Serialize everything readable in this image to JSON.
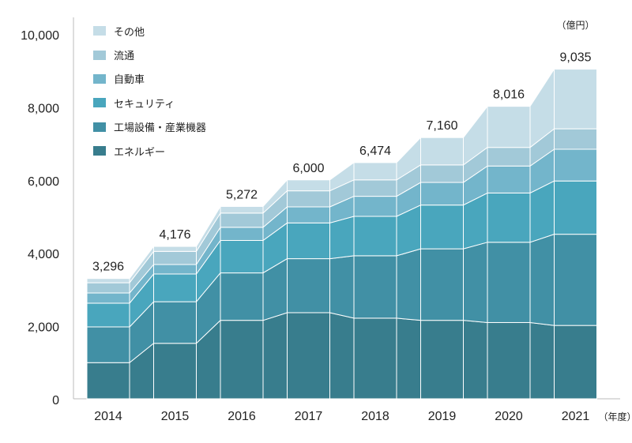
{
  "chart_data": {
    "type": "bar",
    "stacked": true,
    "categories": [
      "2014",
      "2015",
      "2016",
      "2017",
      "2018",
      "2019",
      "2020",
      "2021"
    ],
    "totals": [
      3296,
      4176,
      5272,
      6000,
      6474,
      7160,
      8016,
      9035
    ],
    "series": [
      {
        "name": "エネルギー",
        "color": "#387d8d",
        "values": [
          990,
          1520,
          2150,
          2360,
          2210,
          2150,
          2090,
          2010
        ]
      },
      {
        "name": "工場設備・産業機器",
        "color": "#4190a5",
        "values": [
          980,
          1140,
          1300,
          1480,
          1710,
          1960,
          2200,
          2500
        ]
      },
      {
        "name": "セキュリティ",
        "color": "#49a6bd",
        "values": [
          650,
          760,
          890,
          980,
          1080,
          1200,
          1350,
          1460
        ]
      },
      {
        "name": "自動車",
        "color": "#73b5cb",
        "values": [
          280,
          260,
          360,
          440,
          550,
          620,
          740,
          870
        ]
      },
      {
        "name": "流通",
        "color": "#a2c9d8",
        "values": [
          280,
          360,
          390,
          440,
          450,
          480,
          510,
          560
        ]
      },
      {
        "name": "その他",
        "color": "#c5dde7",
        "values": [
          116,
          136,
          182,
          300,
          474,
          750,
          1126,
          1635
        ]
      }
    ],
    "y_ticks": [
      "0",
      "2,000",
      "4,000",
      "6,000",
      "8,000",
      "10,000"
    ],
    "ylim": [
      0,
      10000
    ],
    "unit_label": "（億円）",
    "x_unit_label": "（年度）",
    "total_labels": [
      "3,296",
      "4,176",
      "5,272",
      "6,000",
      "6,474",
      "7,160",
      "8,016",
      "9,035"
    ],
    "legend_position": "top-left",
    "grid": false
  }
}
